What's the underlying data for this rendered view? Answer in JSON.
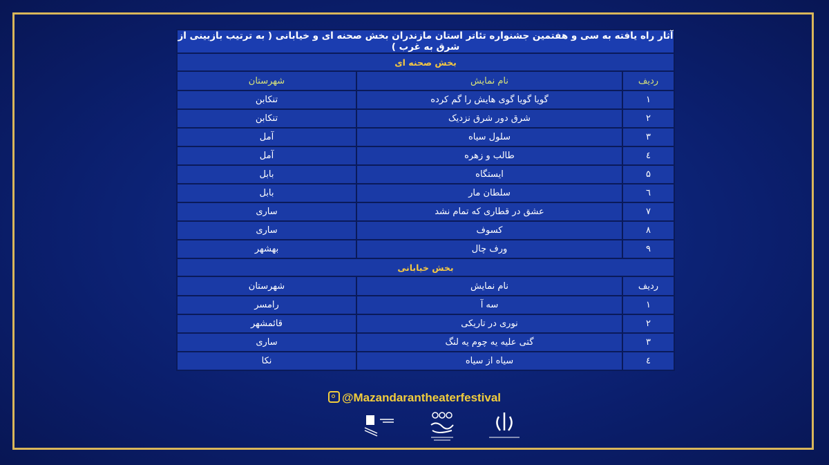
{
  "title": "آثار راه یافته به سی و هفتمین جشنواره تئاتر استان مازندران بخش صحنه ای و خیابانی ( به ترتیب بازبینی از شرق به غرب )",
  "stage": {
    "section_label": "بخش صحنه ای",
    "headers": {
      "index": "ردیف",
      "name": "نام نمایش",
      "city": "شهرستان"
    },
    "rows": [
      {
        "index": "۱",
        "name": "گویا گویا گوی هایش را گم کرده",
        "city": "تنکابن"
      },
      {
        "index": "۲",
        "name": "شرق دور شرق نزدیک",
        "city": "تنکابن"
      },
      {
        "index": "۳",
        "name": "سلول سیاه",
        "city": "آمل"
      },
      {
        "index": "٤",
        "name": "طالب و زهره",
        "city": "آمل"
      },
      {
        "index": "۵",
        "name": "ایستگاه",
        "city": "بابل"
      },
      {
        "index": "٦",
        "name": "سلطان مار",
        "city": "بابل"
      },
      {
        "index": "۷",
        "name": "عشق در قطاری که تمام نشد",
        "city": "ساری"
      },
      {
        "index": "۸",
        "name": "کسوف",
        "city": "ساری"
      },
      {
        "index": "۹",
        "name": "ورف چال",
        "city": "بهشهر"
      }
    ]
  },
  "street": {
    "section_label": "بخش خیابانی",
    "headers": {
      "index": "ردیف",
      "name": "نام نمایش",
      "city": "شهرستان"
    },
    "rows": [
      {
        "index": "۱",
        "name": "سه آ",
        "city": "رامسر"
      },
      {
        "index": "۲",
        "name": "نوری در تاریکی",
        "city": "قائمشهر"
      },
      {
        "index": "۳",
        "name": "گتی علیه یه چوم یه لنگ",
        "city": "ساری"
      },
      {
        "index": "٤",
        "name": "سیاه از سیاه",
        "city": "نکا"
      }
    ]
  },
  "footer": {
    "instagram": "@Mazandarantheaterfestival",
    "icon": "instagram-icon",
    "logos": [
      "iran-emblem-logo",
      "theater-association-logo",
      "culture-ministry-logo"
    ]
  },
  "colors": {
    "background": "#0b1f6e",
    "frame": "#d9b65a",
    "table": "#1a3aa6",
    "section_text": "#f5c842",
    "handle": "#f2cd3c"
  }
}
